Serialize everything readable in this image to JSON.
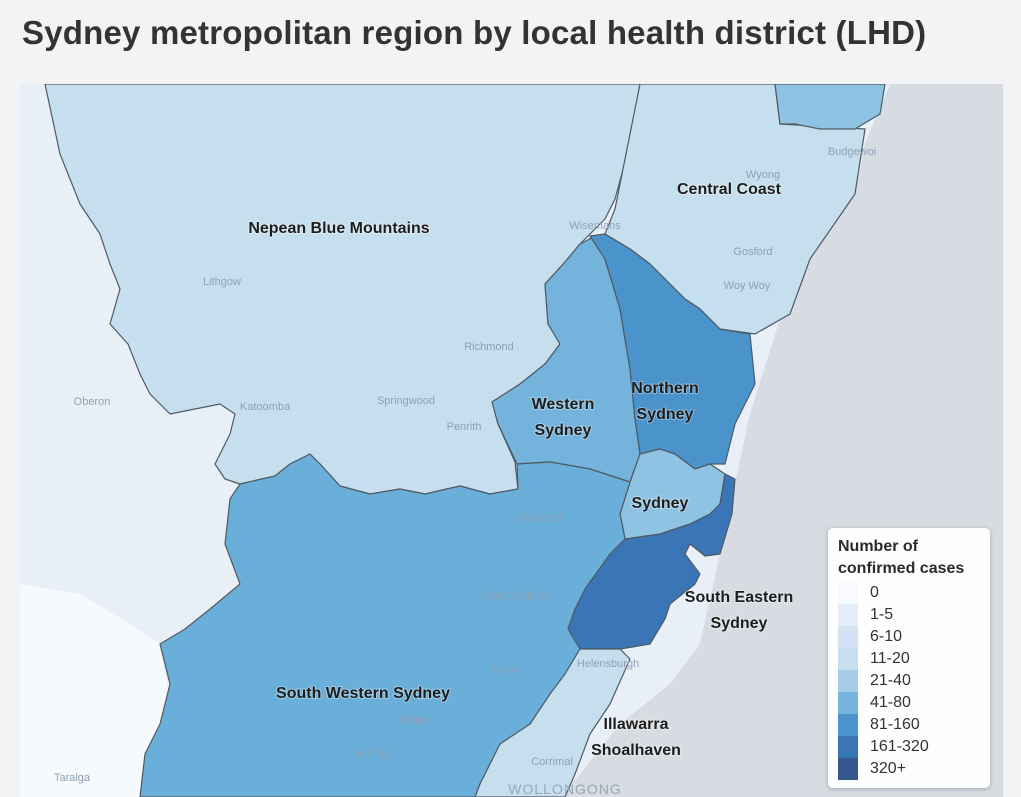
{
  "title": "Sydney metropolitan region by local health district (LHD)",
  "districts": [
    {
      "id": "nepean-blue-mountains",
      "label": "Nepean Blue Mountains",
      "color": "#c6dfef"
    },
    {
      "id": "central-coast",
      "label": "Central Coast",
      "color": "#c6dfef"
    },
    {
      "id": "western-sydney",
      "label": "Western\nSydney",
      "color": "#74b3dc"
    },
    {
      "id": "northern-sydney",
      "label": "Northern\nSydney",
      "color": "#4a93cb"
    },
    {
      "id": "sydney",
      "label": "Sydney",
      "color": "#8fc3e4"
    },
    {
      "id": "south-eastern-sydney",
      "label": "South Eastern\nSydney",
      "color": "#3a75b6"
    },
    {
      "id": "south-western-sydney",
      "label": "South Western Sydney",
      "color": "#6aafd9"
    },
    {
      "id": "illawarra-shoalhaven",
      "label": "Illawarra\nShoalhaven",
      "color": "#c6dfef"
    }
  ],
  "places": [
    "Budgewoi",
    "Wyong",
    "Wisemans",
    "Gosford",
    "Woy Woy",
    "Lithgow",
    "Richmond",
    "Oberon",
    "Katoomba",
    "Springwood",
    "Penrith",
    "Liverpool",
    "Campbelltown",
    "Appin",
    "Helensburgh",
    "Bargo",
    "Hill Top",
    "Taralga",
    "Corrimal",
    "WOLLONGONG"
  ],
  "legend": {
    "title": "Number of confirmed cases",
    "items": [
      {
        "label": "0",
        "color": "#f7fbff"
      },
      {
        "label": "1-5",
        "color": "#e4eef8"
      },
      {
        "label": "6-10",
        "color": "#d2e4f4"
      },
      {
        "label": "11-20",
        "color": "#c6dfef"
      },
      {
        "label": "21-40",
        "color": "#a3cde8"
      },
      {
        "label": "41-80",
        "color": "#74b3dc"
      },
      {
        "label": "81-160",
        "color": "#4a93cb"
      },
      {
        "label": "161-320",
        "color": "#3a75b6"
      },
      {
        "label": "320+",
        "color": "#35598f"
      }
    ]
  }
}
